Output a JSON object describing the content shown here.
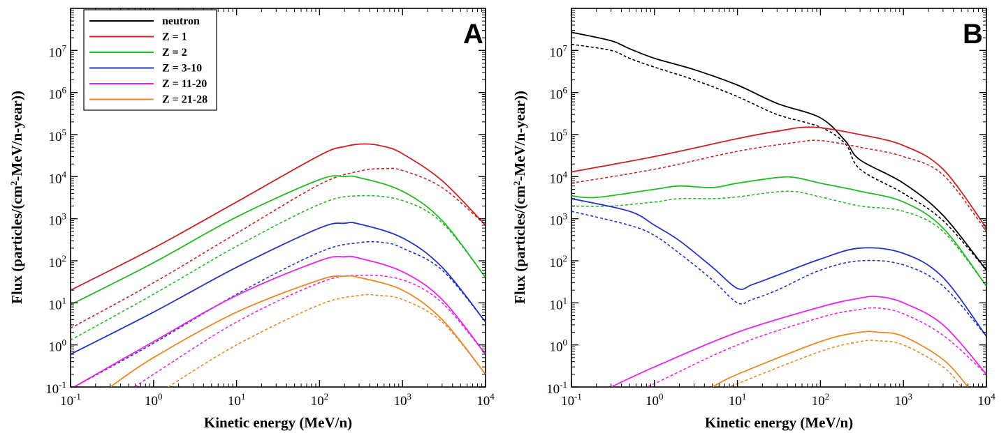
{
  "figure": {
    "legend": [
      {
        "label": "neutron",
        "color": "#000000"
      },
      {
        "label": "Z = 1",
        "color": "#cc2222"
      },
      {
        "label": "Z = 2",
        "color": "#22bb22"
      },
      {
        "label": "Z = 3-10",
        "color": "#2233cc"
      },
      {
        "label": "Z = 11-20",
        "color": "#ee22ee"
      },
      {
        "label": "Z = 21-28",
        "color": "#ee8822"
      }
    ],
    "legend_placement": "top-left of panel A",
    "line_styles": {
      "solid": "solid",
      "dotted": "dashed"
    }
  },
  "chart_data": [
    {
      "type": "line",
      "panel": "A",
      "xlabel": "Kinetic energy (MeV/n)",
      "ylabel": "Flux (particles/(cm^2-MeV/n-year))",
      "xscale": "log",
      "yscale": "log",
      "xlim": [
        0.1,
        10000
      ],
      "ylim": [
        0.1,
        100000000
      ],
      "x_ticks": [
        0.1,
        1,
        10,
        100,
        1000,
        10000
      ],
      "y_ticks": [
        0.1,
        1,
        10,
        100,
        1000,
        10000,
        100000,
        1000000,
        10000000
      ],
      "series": [
        {
          "name": "Z = 1",
          "color": "#cc2222",
          "style": "solid",
          "x": [
            0.1,
            1,
            10,
            100,
            200,
            350,
            600,
            1000,
            3000,
            10000
          ],
          "y": [
            20,
            200,
            2500,
            32000,
            52000,
            60000,
            52000,
            35000,
            8000,
            700
          ]
        },
        {
          "name": "Z = 1",
          "color": "#cc2222",
          "style": "dotted",
          "x": [
            0.1,
            1,
            10,
            100,
            300,
            600,
            1000,
            3000,
            10000
          ],
          "y": [
            2.5,
            30,
            450,
            6500,
            13500,
            15500,
            14000,
            5500,
            700
          ]
        },
        {
          "name": "Z = 2",
          "color": "#22bb22",
          "style": "solid",
          "x": [
            0.1,
            1,
            10,
            100,
            200,
            300,
            1000,
            3000,
            10000
          ],
          "y": [
            9,
            90,
            1100,
            8500,
            10000,
            9500,
            4500,
            900,
            40
          ]
        },
        {
          "name": "Z = 2",
          "color": "#22bb22",
          "style": "dotted",
          "x": [
            0.1,
            1,
            10,
            100,
            300,
            1000,
            3000,
            10000
          ],
          "y": [
            1.3,
            16,
            220,
            2200,
            3500,
            2700,
            800,
            40
          ]
        },
        {
          "name": "Z = 3-10",
          "color": "#2233cc",
          "style": "solid",
          "x": [
            0.1,
            1,
            10,
            100,
            200,
            300,
            1000,
            3000,
            10000
          ],
          "y": [
            0.6,
            6,
            70,
            600,
            780,
            750,
            350,
            70,
            3.5
          ]
        },
        {
          "name": "Z = 3-10",
          "color": "#2233cc",
          "style": "dotted",
          "x": [
            0.1,
            1,
            10,
            100,
            300,
            600,
            1000,
            3000,
            10000
          ],
          "y": [
            0.09,
            1.1,
            16,
            160,
            270,
            270,
            200,
            60,
            3.5
          ]
        },
        {
          "name": "Z = 11-20",
          "color": "#ee22ee",
          "style": "solid",
          "x": [
            0.1,
            1,
            10,
            100,
            200,
            300,
            1000,
            3000,
            10000
          ],
          "y": [
            0.09,
            1.2,
            15,
            100,
            125,
            115,
            55,
            12,
            0.6
          ]
        },
        {
          "name": "Z = 11-20",
          "color": "#ee22ee",
          "style": "dotted",
          "x": [
            0.6,
            1,
            10,
            100,
            300,
            1000,
            3000,
            10000
          ],
          "y": [
            0.1,
            0.2,
            3.5,
            30,
            45,
            35,
            10,
            0.6
          ]
        },
        {
          "name": "Z = 21-28",
          "color": "#ee8822",
          "style": "solid",
          "x": [
            0.3,
            1,
            10,
            100,
            200,
            300,
            1000,
            3000,
            10000
          ],
          "y": [
            0.1,
            0.5,
            6,
            35,
            43,
            40,
            20,
            4,
            0.2
          ]
        },
        {
          "name": "Z = 21-28",
          "color": "#ee8822",
          "style": "dotted",
          "x": [
            1.5,
            10,
            100,
            300,
            500,
            1000,
            3000,
            10000
          ],
          "y": [
            0.1,
            1,
            9,
            15,
            15,
            12,
            3.5,
            0.2
          ]
        }
      ]
    },
    {
      "type": "line",
      "panel": "B",
      "xlabel": "Kinetic energy (MeV/n)",
      "ylabel": "Flux (particles/(cm^2-MeV/n-year))",
      "xscale": "log",
      "yscale": "log",
      "xlim": [
        0.1,
        10000
      ],
      "ylim": [
        0.1,
        100000000
      ],
      "x_ticks": [
        0.1,
        1,
        10,
        100,
        1000,
        10000
      ],
      "y_ticks": [
        0.1,
        1,
        10,
        100,
        1000,
        10000,
        100000,
        1000000,
        10000000
      ],
      "series": [
        {
          "name": "neutron",
          "color": "#000000",
          "style": "solid",
          "x": [
            0.1,
            0.3,
            0.5,
            1,
            3,
            10,
            30,
            100,
            200,
            300,
            1000,
            3000,
            10000
          ],
          "y": [
            27000000,
            17000000,
            11000000,
            6500000,
            3500000,
            1500000,
            550000,
            250000,
            70000,
            25000,
            7000,
            1200,
            60
          ]
        },
        {
          "name": "neutron",
          "color": "#000000",
          "style": "dotted",
          "x": [
            0.1,
            0.3,
            0.5,
            1,
            3,
            10,
            30,
            100,
            200,
            300,
            1000,
            3000,
            10000
          ],
          "y": [
            14000000,
            10000000,
            6500000,
            4000000,
            2000000,
            800000,
            300000,
            150000,
            60000,
            15000,
            4000,
            900,
            60
          ]
        },
        {
          "name": "Z = 1",
          "color": "#cc2222",
          "style": "solid",
          "x": [
            0.1,
            1,
            10,
            30,
            80,
            300,
            1000,
            3000,
            10000
          ],
          "y": [
            13000,
            30000,
            80000,
            120000,
            150000,
            100000,
            55000,
            15000,
            600
          ]
        },
        {
          "name": "Z = 1",
          "color": "#cc2222",
          "style": "dotted",
          "x": [
            0.1,
            1,
            10,
            50,
            100,
            300,
            1000,
            3000,
            10000
          ],
          "y": [
            7000,
            15000,
            40000,
            65000,
            72000,
            50000,
            30000,
            11000,
            500
          ]
        },
        {
          "name": "Z = 2",
          "color": "#22bb22",
          "style": "solid",
          "x": [
            0.1,
            0.2,
            1,
            2,
            5,
            10,
            30,
            50,
            100,
            300,
            1000,
            3000,
            10000
          ],
          "y": [
            3500,
            3200,
            5000,
            6000,
            5500,
            7000,
            9500,
            9500,
            7000,
            4500,
            2500,
            600,
            25
          ]
        },
        {
          "name": "Z = 2",
          "color": "#22bb22",
          "style": "dotted",
          "x": [
            0.1,
            0.3,
            1,
            2,
            5,
            10,
            40,
            100,
            300,
            1000,
            3000,
            10000
          ],
          "y": [
            2000,
            2000,
            2500,
            3000,
            3000,
            3300,
            4500,
            3300,
            2000,
            1500,
            500,
            25
          ]
        },
        {
          "name": "Z = 3-10",
          "color": "#2233cc",
          "style": "solid",
          "x": [
            0.1,
            0.5,
            1,
            2,
            5,
            10,
            15,
            30,
            100,
            300,
            1000,
            3000,
            10000
          ],
          "y": [
            3000,
            1500,
            700,
            300,
            70,
            22,
            27,
            45,
            110,
            200,
            150,
            40,
            1.6
          ]
        },
        {
          "name": "Z = 3-10",
          "color": "#2233cc",
          "style": "dotted",
          "x": [
            0.1,
            0.5,
            1,
            2,
            5,
            10,
            15,
            30,
            100,
            300,
            1000,
            3000,
            10000
          ],
          "y": [
            1500,
            700,
            400,
            150,
            35,
            10,
            12,
            20,
            60,
            100,
            80,
            25,
            1.6
          ]
        },
        {
          "name": "Z = 11-20",
          "color": "#ee22ee",
          "style": "solid",
          "x": [
            0.3,
            1,
            10,
            100,
            300,
            500,
            1000,
            3000,
            10000
          ],
          "y": [
            0.1,
            0.3,
            2,
            8,
            13,
            14,
            10,
            3,
            0.2
          ]
        },
        {
          "name": "Z = 11-20",
          "color": "#ee22ee",
          "style": "dotted",
          "x": [
            0.8,
            1,
            10,
            100,
            300,
            500,
            1000,
            3000,
            10000
          ],
          "y": [
            0.1,
            0.12,
            1,
            4.5,
            7,
            7.5,
            5.5,
            1.7,
            0.2
          ]
        },
        {
          "name": "Z = 21-28",
          "color": "#ee8822",
          "style": "solid",
          "x": [
            5,
            10,
            100,
            300,
            500,
            1000,
            3000,
            6000
          ],
          "y": [
            0.1,
            0.2,
            1.2,
            2,
            2,
            1.6,
            0.45,
            0.1
          ]
        },
        {
          "name": "Z = 21-28",
          "color": "#ee8822",
          "style": "dotted",
          "x": [
            8,
            10,
            100,
            300,
            500,
            1000,
            3000,
            5000
          ],
          "y": [
            0.1,
            0.12,
            0.7,
            1.2,
            1.25,
            1,
            0.3,
            0.1
          ]
        }
      ]
    }
  ],
  "panel_labels": {
    "a": "A",
    "b": "B"
  }
}
